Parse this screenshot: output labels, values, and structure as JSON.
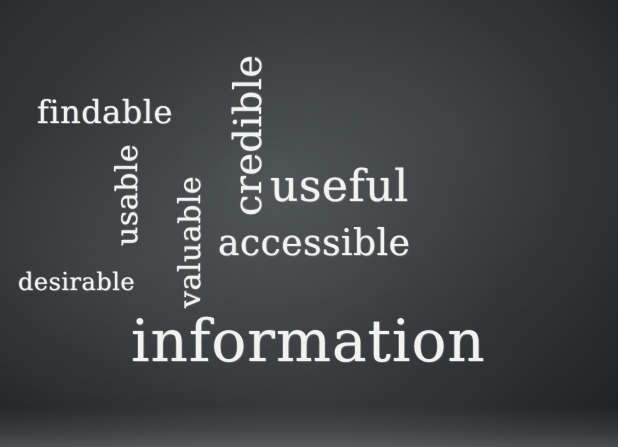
{
  "words": {
    "findable": "findable",
    "usable": "usable",
    "valuable": "valuable",
    "credible": "credible",
    "useful": "useful",
    "accessible": "accessible",
    "desirable": "desirable",
    "information": "information"
  },
  "colors": {
    "board": "#3a3e41",
    "chalk": "#f2f2f0"
  }
}
